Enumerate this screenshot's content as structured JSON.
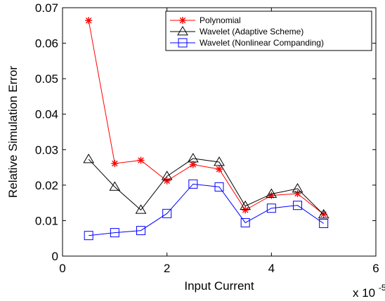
{
  "chart_data": {
    "type": "line",
    "title": "",
    "xlabel": "Input Current",
    "ylabel": "Relative Simulation Error",
    "x_exponent_base": "x 10",
    "x_exponent_power": "-5",
    "xlim": [
      0,
      6
    ],
    "ylim": [
      0,
      0.07
    ],
    "x_ticks": [
      0,
      2,
      4,
      6
    ],
    "x_tick_labels": [
      "0",
      "2",
      "4",
      "6"
    ],
    "y_ticks": [
      0,
      0.01,
      0.02,
      0.03,
      0.04,
      0.05,
      0.06,
      0.07
    ],
    "y_tick_labels": [
      "0",
      "0.01",
      "0.02",
      "0.03",
      "0.04",
      "0.05",
      "0.06",
      "0.07"
    ],
    "grid": false,
    "legend_position": "top-right",
    "x": [
      0.5,
      1.0,
      1.5,
      2.0,
      2.5,
      3.0,
      3.5,
      4.0,
      4.5,
      5.0
    ],
    "series": [
      {
        "name": "Polynomial",
        "color": "#ff0000",
        "marker": "asterisk",
        "values": [
          0.0664,
          0.0261,
          0.027,
          0.0212,
          0.0258,
          0.0245,
          0.013,
          0.0171,
          0.0176,
          0.0118
        ]
      },
      {
        "name": "Wavelet (Adaptive Scheme)",
        "color": "#000000",
        "marker": "triangle",
        "values": [
          0.0273,
          0.0195,
          0.013,
          0.0225,
          0.0275,
          0.0265,
          0.0141,
          0.0175,
          0.019,
          0.0117
        ]
      },
      {
        "name": "Wavelet (Nonlinear Companding)",
        "color": "#0000ff",
        "marker": "square",
        "values": [
          0.0058,
          0.0066,
          0.0072,
          0.012,
          0.0203,
          0.0195,
          0.0094,
          0.0135,
          0.0143,
          0.0092
        ]
      }
    ]
  }
}
